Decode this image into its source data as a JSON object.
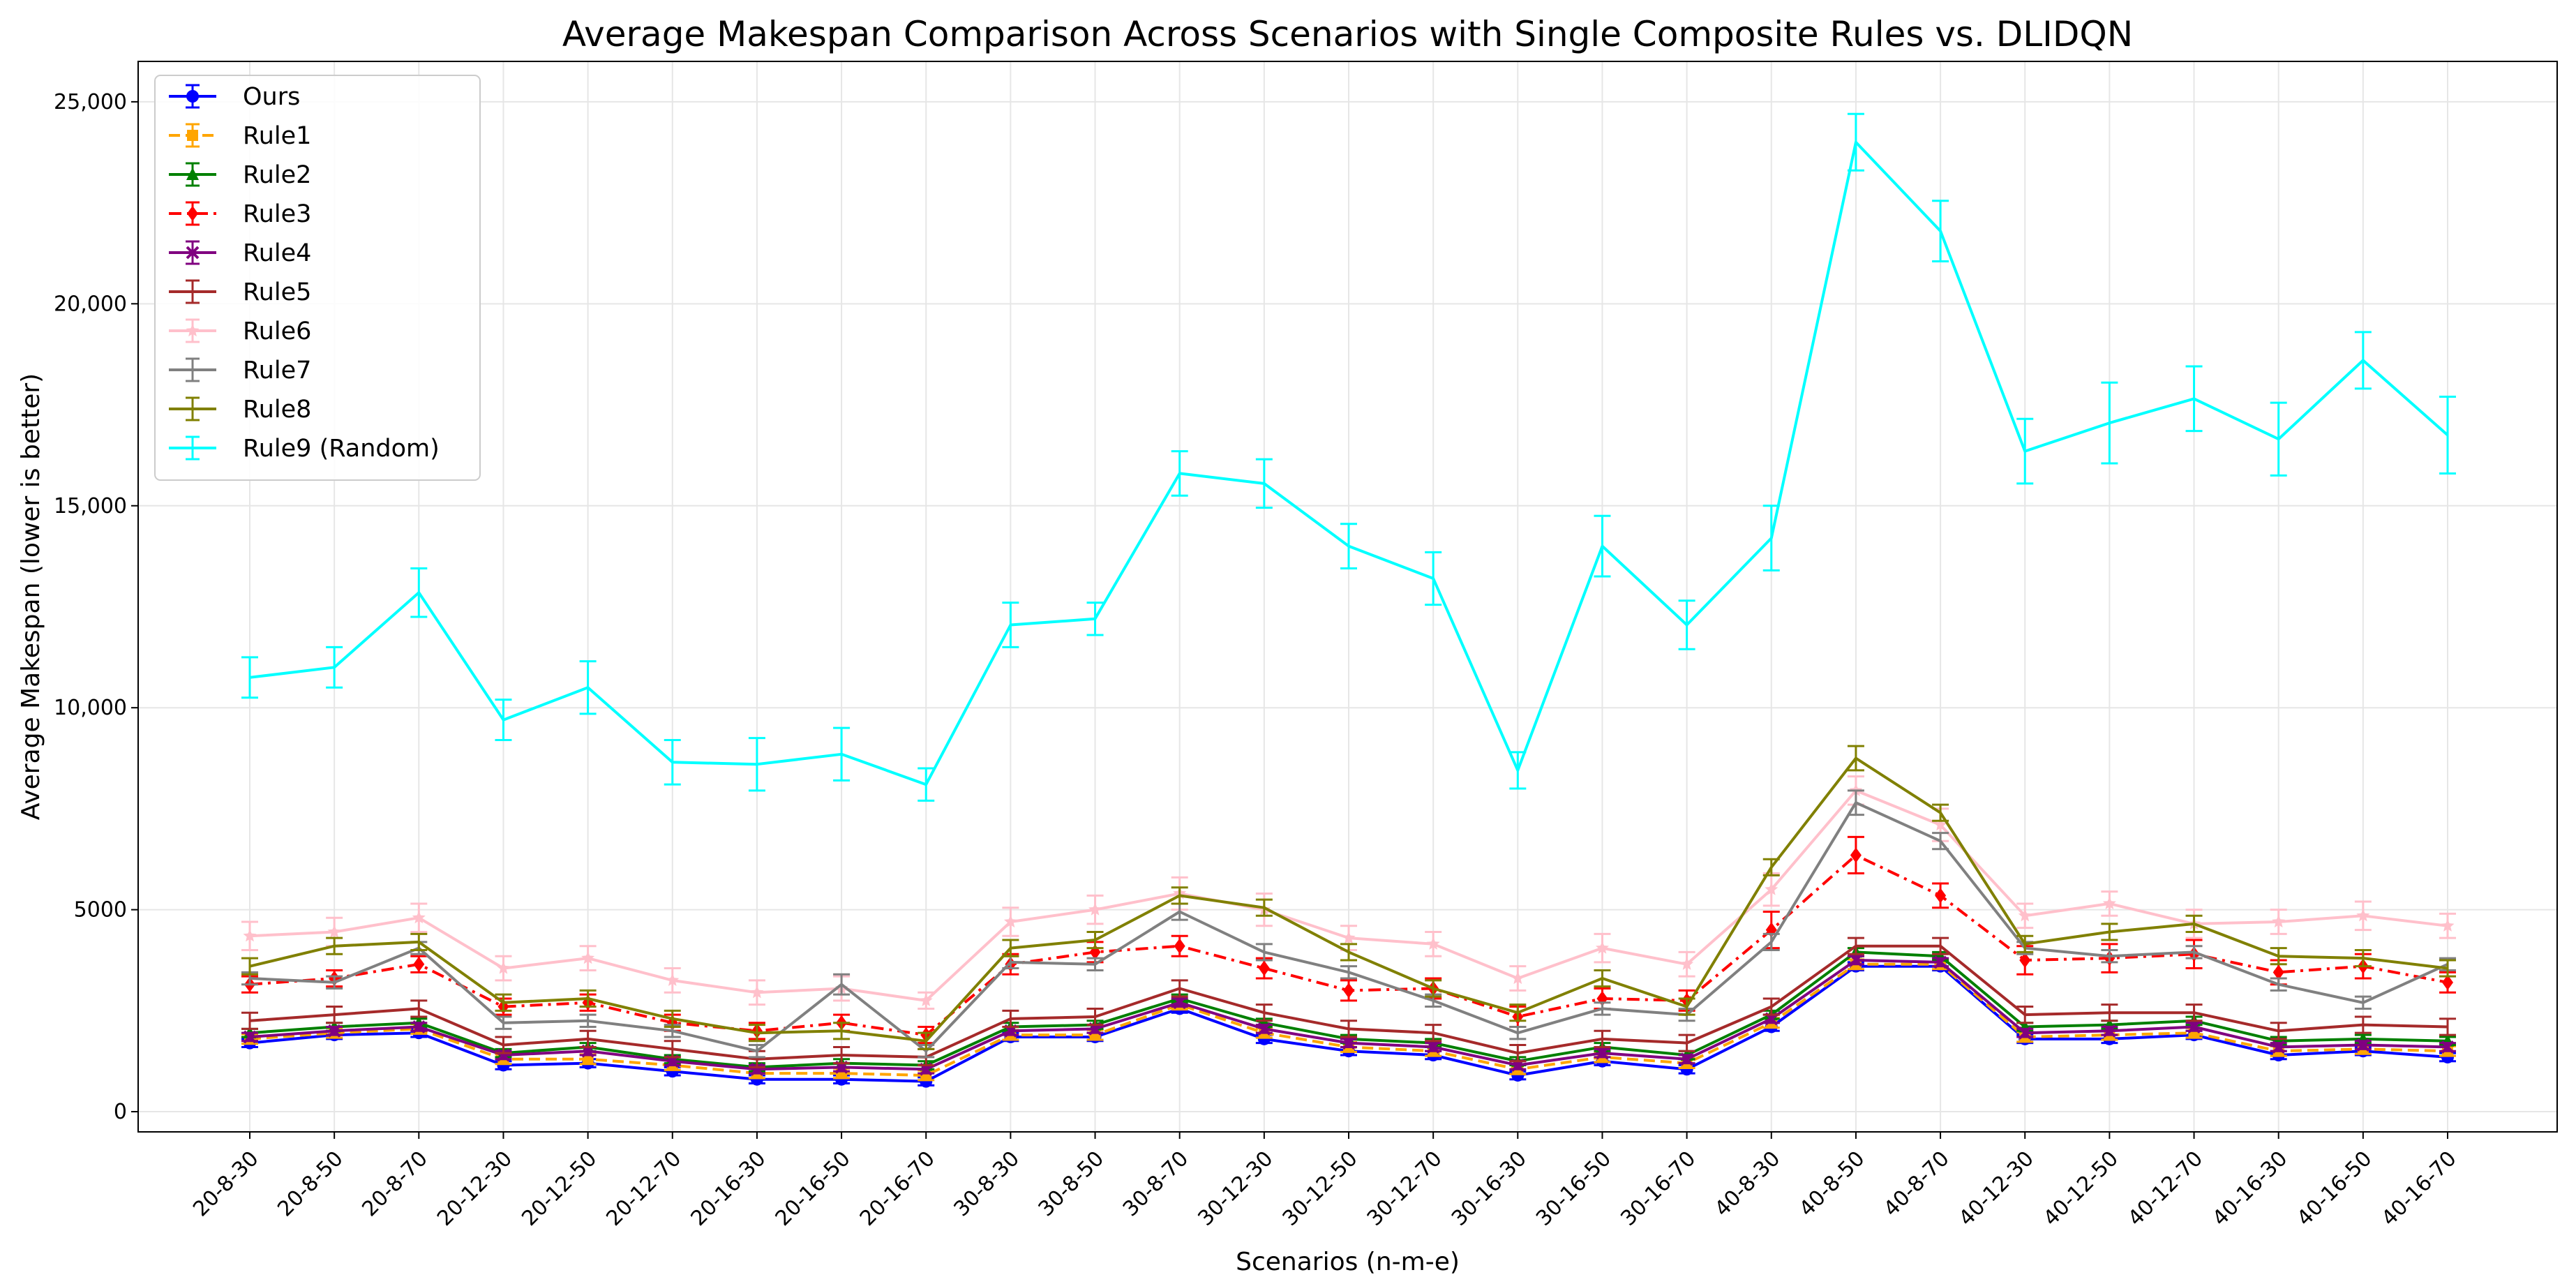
{
  "chart_data": {
    "type": "line",
    "title": "Average Makespan Comparison Across Scenarios with Single Composite Rules vs. DLIDQN",
    "xlabel": "Scenarios (n-m-e)",
    "ylabel": "Average Makespan (lower is better)",
    "ylim": [
      -500,
      26000
    ],
    "yticks": [
      0,
      5000,
      10000,
      15000,
      20000,
      25000
    ],
    "ytick_labels": [
      "0",
      "5000",
      "10,000",
      "15,000",
      "20,000",
      "25,000"
    ],
    "grid": true,
    "legend_position": "top-left",
    "categories": [
      "20-8-30",
      "20-8-50",
      "20-8-70",
      "20-12-30",
      "20-12-50",
      "20-12-70",
      "20-16-30",
      "20-16-50",
      "20-16-70",
      "30-8-30",
      "30-8-50",
      "30-8-70",
      "30-12-30",
      "30-12-50",
      "30-12-70",
      "30-16-30",
      "30-16-50",
      "30-16-70",
      "40-8-30",
      "40-8-50",
      "40-8-70",
      "40-12-30",
      "40-12-50",
      "40-12-70",
      "40-16-30",
      "40-16-50",
      "40-16-70"
    ],
    "series": [
      {
        "name": "Ours",
        "color": "#0000ff",
        "marker": "circle",
        "dash": "solid",
        "values": [
          1700,
          1900,
          1950,
          1150,
          1200,
          1000,
          800,
          800,
          750,
          1850,
          1850,
          2550,
          1800,
          1500,
          1400,
          900,
          1250,
          1050,
          2100,
          3600,
          3600,
          1800,
          1800,
          1900,
          1400,
          1500,
          1350
        ],
        "errors": [
          100,
          100,
          100,
          100,
          100,
          100,
          100,
          100,
          100,
          100,
          100,
          100,
          100,
          100,
          100,
          100,
          100,
          100,
          100,
          100,
          100,
          100,
          100,
          100,
          100,
          100,
          100
        ]
      },
      {
        "name": "Rule1",
        "color": "#ffa500",
        "marker": "square",
        "dash": "dashed",
        "values": [
          1800,
          1950,
          2050,
          1300,
          1300,
          1150,
          950,
          950,
          900,
          1900,
          1900,
          2650,
          1950,
          1600,
          1500,
          1050,
          1350,
          1200,
          2200,
          3650,
          3650,
          1850,
          1900,
          1950,
          1500,
          1550,
          1500
        ],
        "errors": [
          120,
          120,
          120,
          120,
          120,
          120,
          120,
          120,
          120,
          120,
          120,
          120,
          120,
          120,
          120,
          120,
          120,
          120,
          120,
          120,
          120,
          120,
          120,
          120,
          120,
          120,
          120
        ]
      },
      {
        "name": "Rule2",
        "color": "#008000",
        "marker": "triangle",
        "dash": "solid",
        "values": [
          1950,
          2100,
          2200,
          1450,
          1600,
          1300,
          1100,
          1200,
          1150,
          2100,
          2150,
          2800,
          2200,
          1800,
          1700,
          1250,
          1600,
          1400,
          2400,
          3950,
          3850,
          2100,
          2150,
          2250,
          1750,
          1800,
          1750
        ],
        "errors": [
          100,
          100,
          100,
          100,
          100,
          100,
          100,
          100,
          100,
          100,
          100,
          100,
          100,
          100,
          100,
          100,
          100,
          100,
          100,
          100,
          100,
          100,
          100,
          100,
          100,
          100,
          100
        ]
      },
      {
        "name": "Rule3",
        "color": "#ff0000",
        "marker": "diamond",
        "dash": "dashdot",
        "values": [
          3150,
          3300,
          3650,
          2600,
          2700,
          2200,
          2000,
          2200,
          1900,
          3650,
          3950,
          4100,
          3550,
          3000,
          3050,
          2350,
          2800,
          2750,
          4500,
          6350,
          5350,
          3750,
          3800,
          3900,
          3450,
          3600,
          3200
        ],
        "errors": [
          200,
          200,
          200,
          200,
          200,
          200,
          200,
          200,
          200,
          250,
          250,
          250,
          250,
          250,
          250,
          250,
          250,
          250,
          450,
          450,
          300,
          350,
          350,
          350,
          300,
          300,
          250
        ]
      },
      {
        "name": "Rule4",
        "color": "#800080",
        "marker": "x",
        "dash": "solid",
        "values": [
          1850,
          2000,
          2100,
          1400,
          1500,
          1250,
          1050,
          1100,
          1050,
          2000,
          2050,
          2700,
          2050,
          1700,
          1600,
          1150,
          1450,
          1300,
          2300,
          3750,
          3700,
          1950,
          2000,
          2100,
          1600,
          1650,
          1600
        ],
        "errors": [
          100,
          100,
          100,
          100,
          100,
          100,
          100,
          100,
          100,
          100,
          100,
          100,
          100,
          100,
          100,
          100,
          100,
          100,
          100,
          100,
          100,
          100,
          100,
          100,
          100,
          100,
          100
        ]
      },
      {
        "name": "Rule5",
        "color": "#a52a2a",
        "marker": "none",
        "dash": "solid",
        "values": [
          2250,
          2400,
          2550,
          1650,
          1800,
          1550,
          1300,
          1400,
          1350,
          2300,
          2350,
          3050,
          2450,
          2050,
          1950,
          1450,
          1800,
          1700,
          2600,
          4100,
          4100,
          2400,
          2450,
          2450,
          2000,
          2150,
          2100
        ],
        "errors": [
          200,
          200,
          200,
          200,
          200,
          200,
          200,
          200,
          200,
          200,
          200,
          200,
          200,
          200,
          200,
          200,
          200,
          200,
          200,
          200,
          200,
          200,
          200,
          200,
          200,
          200,
          200
        ]
      },
      {
        "name": "Rule6",
        "color": "#ffc0cb",
        "marker": "star",
        "dash": "solid",
        "values": [
          4350,
          4450,
          4800,
          3550,
          3800,
          3250,
          2950,
          3050,
          2750,
          4700,
          5000,
          5400,
          5000,
          4300,
          4150,
          3300,
          4050,
          3650,
          5500,
          7950,
          7100,
          4850,
          5150,
          4650,
          4700,
          4850,
          4600
        ],
        "errors": [
          350,
          350,
          350,
          300,
          300,
          300,
          300,
          300,
          200,
          350,
          350,
          400,
          400,
          300,
          300,
          300,
          350,
          300,
          400,
          350,
          400,
          300,
          300,
          350,
          300,
          350,
          300
        ]
      },
      {
        "name": "Rule7",
        "color": "#808080",
        "marker": "none",
        "dash": "solid",
        "values": [
          3300,
          3200,
          4050,
          2200,
          2250,
          2000,
          1500,
          3150,
          1500,
          3700,
          3650,
          4950,
          3950,
          3450,
          2750,
          1950,
          2550,
          2400,
          4200,
          7650,
          6700,
          4050,
          3850,
          3950,
          3150,
          2700,
          3650
        ],
        "errors": [
          150,
          150,
          150,
          150,
          150,
          150,
          150,
          250,
          150,
          150,
          150,
          200,
          200,
          150,
          150,
          150,
          150,
          150,
          200,
          300,
          200,
          150,
          150,
          150,
          150,
          150,
          150
        ]
      },
      {
        "name": "Rule8",
        "color": "#808000",
        "marker": "none",
        "dash": "solid",
        "values": [
          3600,
          4100,
          4200,
          2700,
          2800,
          2300,
          1950,
          2000,
          1750,
          4050,
          4250,
          5350,
          5050,
          3950,
          3050,
          2450,
          3300,
          2600,
          6050,
          8750,
          7400,
          4150,
          4450,
          4650,
          3850,
          3800,
          3550
        ],
        "errors": [
          200,
          200,
          200,
          200,
          200,
          200,
          200,
          200,
          200,
          200,
          200,
          200,
          200,
          200,
          200,
          200,
          200,
          200,
          200,
          300,
          200,
          200,
          200,
          200,
          200,
          200,
          200
        ]
      },
      {
        "name": "Rule9 (Random)",
        "color": "#00ffff",
        "marker": "none",
        "dash": "solid",
        "values": [
          10750,
          11000,
          12850,
          9700,
          10500,
          8650,
          8600,
          8850,
          8100,
          12050,
          12200,
          15800,
          15550,
          14000,
          13200,
          8450,
          14000,
          12050,
          14200,
          24000,
          21800,
          16350,
          17050,
          17650,
          16650,
          18600,
          16750
        ],
        "errors": [
          500,
          500,
          600,
          500,
          650,
          550,
          650,
          650,
          400,
          550,
          400,
          550,
          600,
          550,
          650,
          450,
          750,
          600,
          800,
          700,
          750,
          800,
          1000,
          800,
          900,
          700,
          950
        ]
      }
    ]
  }
}
